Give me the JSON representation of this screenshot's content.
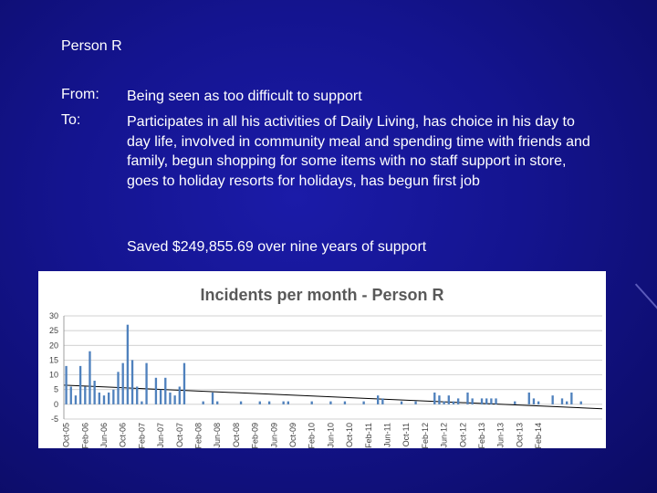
{
  "slide": {
    "title": "Person R",
    "from_label": "From:",
    "from_text": "Being seen as too difficult to support",
    "to_label": "To:",
    "to_text": "Participates in all his activities of Daily Living, has choice in his day to day life, involved in community meal and spending time with friends and family, begun shopping for some items with no staff support in store, goes to holiday resorts for holidays, has begun first job",
    "saved_text": "Saved $249,855.69 over nine years of support"
  },
  "colors": {
    "background": "#14148f",
    "bar": "#4f81bd",
    "trend": "#000000",
    "grid": "#c0c0c0"
  },
  "chart_data": {
    "type": "bar",
    "title": "Incidents per month - Person R",
    "ylim": [
      -5,
      30
    ],
    "yticks": [
      -5,
      0,
      5,
      10,
      15,
      20,
      25,
      30
    ],
    "grid": true,
    "trendline": {
      "start": 6.5,
      "end": -1.5
    },
    "xticks": [
      {
        "label": "Oct-05",
        "index": 0
      },
      {
        "label": "Feb-06",
        "index": 4
      },
      {
        "label": "Jun-06",
        "index": 8
      },
      {
        "label": "Oct-06",
        "index": 12
      },
      {
        "label": "Feb-07",
        "index": 16
      },
      {
        "label": "Jun-07",
        "index": 20
      },
      {
        "label": "Oct-07",
        "index": 24
      },
      {
        "label": "Feb-08",
        "index": 28
      },
      {
        "label": "Jun-08",
        "index": 32
      },
      {
        "label": "Oct-08",
        "index": 36
      },
      {
        "label": "Feb-09",
        "index": 40
      },
      {
        "label": "Jun-09",
        "index": 44
      },
      {
        "label": "Oct-09",
        "index": 48
      },
      {
        "label": "Feb-10",
        "index": 52
      },
      {
        "label": "Jun-10",
        "index": 56
      },
      {
        "label": "Oct-10",
        "index": 60
      },
      {
        "label": "Feb-11",
        "index": 64
      },
      {
        "label": "Jun-11",
        "index": 68
      },
      {
        "label": "Oct-11",
        "index": 72
      },
      {
        "label": "Feb-12",
        "index": 76
      },
      {
        "label": "Jun-12",
        "index": 80
      },
      {
        "label": "Oct-12",
        "index": 84
      },
      {
        "label": "Feb-13",
        "index": 88
      },
      {
        "label": "Jun-13",
        "index": 92
      },
      {
        "label": "Oct-13",
        "index": 96
      },
      {
        "label": "Feb-14",
        "index": 100
      }
    ],
    "values": [
      13,
      6,
      3,
      13,
      6,
      18,
      8,
      4,
      3,
      4,
      5,
      11,
      14,
      27,
      15,
      6,
      1,
      14,
      0,
      9,
      5,
      9,
      4,
      3,
      6,
      14,
      0,
      0,
      0,
      1,
      0,
      4,
      1,
      0,
      0,
      0,
      0,
      1,
      0,
      0,
      0,
      1,
      0,
      1,
      0,
      0,
      1,
      1,
      0,
      0,
      0,
      0,
      1,
      0,
      0,
      0,
      1,
      0,
      0,
      1,
      0,
      0,
      0,
      1,
      0,
      0,
      3,
      2,
      0,
      0,
      0,
      1,
      0,
      0,
      1,
      0,
      0,
      0,
      4,
      3,
      1,
      3,
      1,
      2,
      0,
      4,
      2,
      0,
      2,
      2,
      2,
      2,
      0,
      0,
      0,
      1,
      0,
      0,
      4,
      2,
      1,
      0,
      0,
      3,
      0,
      2,
      1,
      4,
      0,
      1,
      0,
      0,
      0,
      0
    ]
  }
}
